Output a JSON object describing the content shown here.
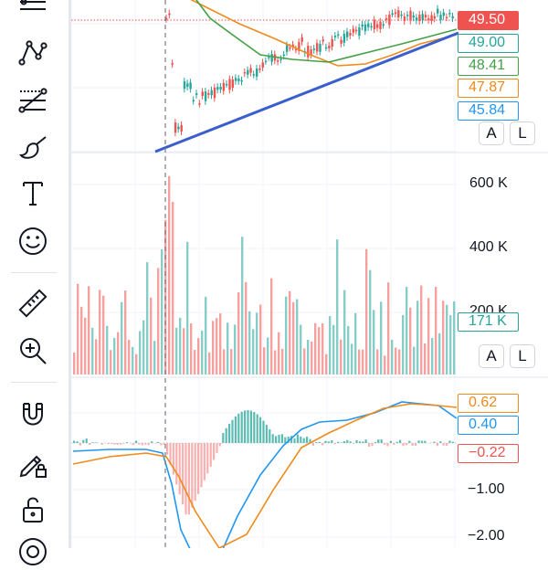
{
  "toolbar": {
    "tools": [
      {
        "name": "trend-line-tools-icon"
      },
      {
        "name": "pattern-tools-icon"
      },
      {
        "name": "fib-tools-icon"
      },
      {
        "name": "brush-icon"
      },
      {
        "name": "text-tool-icon"
      },
      {
        "name": "emoji-icon"
      },
      {
        "name": "ruler-icon"
      },
      {
        "name": "zoom-in-icon"
      },
      {
        "name": "magnet-icon"
      },
      {
        "name": "lock-drawing-icon"
      },
      {
        "name": "unlock-icon"
      },
      {
        "name": "visibility-icon"
      }
    ]
  },
  "price_pane": {
    "price_tags": [
      {
        "label": "49.50",
        "color": "#ef5350",
        "filled": true
      },
      {
        "label": "49.00",
        "color": "#26a69a",
        "filled": false
      },
      {
        "label": "48.41",
        "color": "#43a047",
        "filled": false
      },
      {
        "label": "47.87",
        "color": "#ef8a1c",
        "filled": false
      },
      {
        "label": "45.84",
        "color": "#2196f3",
        "filled": false
      }
    ],
    "auto_button": "A",
    "log_button": "L"
  },
  "volume_pane": {
    "axis_labels": [
      "600 K",
      "400 K",
      "200 K"
    ],
    "volume_tag": "171 K",
    "auto_button": "A",
    "log_button": "L"
  },
  "macd_pane": {
    "tags": [
      {
        "label": "0.62",
        "color": "#ef8a1c"
      },
      {
        "label": "0.40",
        "color": "#2196f3"
      },
      {
        "label": "−0.22",
        "color": "#ef5350"
      }
    ],
    "axis_labels": [
      "−1.00",
      "−2.00"
    ]
  },
  "colors": {
    "up": "#26a69a",
    "down": "#ef5350",
    "trendline": "#3a5fcd",
    "ma_green": "#43a047",
    "ma_orange": "#ef8a1c",
    "macd_line": "#2196f3",
    "signal_line": "#ef8a1c"
  }
}
